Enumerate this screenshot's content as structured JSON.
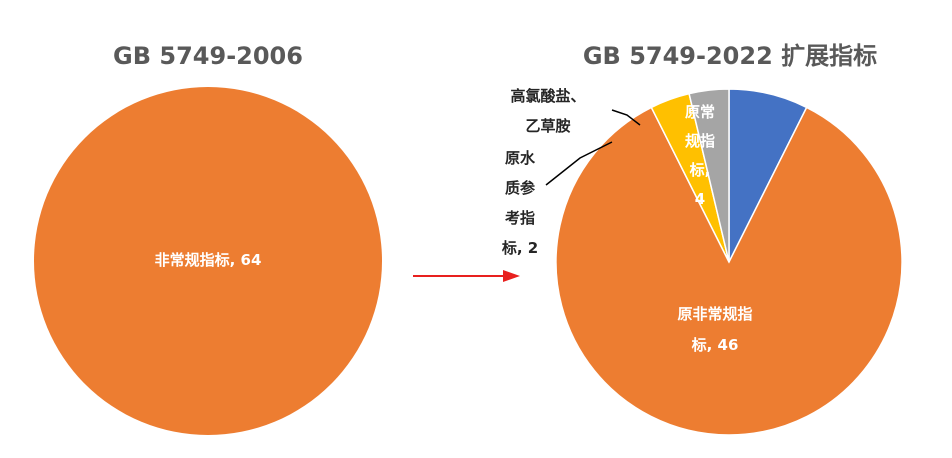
{
  "chart_data": [
    {
      "type": "pie",
      "title": "GB 5749-2006",
      "slices": [
        {
          "label": "非常规指标",
          "value": 64,
          "color": "#ED7D31",
          "data_label_lines": [
            "非常规指标, 64"
          ]
        }
      ]
    },
    {
      "type": "pie",
      "title": "GB 5749-2022 扩展指标",
      "slices": [
        {
          "label": "原常规指标",
          "value": 4,
          "color": "#4472C4",
          "data_label_lines": [
            "原常",
            "规指",
            "标,",
            "4"
          ]
        },
        {
          "label": "原非常规指标",
          "value": 46,
          "color": "#ED7D31",
          "data_label_lines": [
            "原非常规指",
            "标, 46"
          ]
        },
        {
          "label": "原水质参考指标",
          "value": 2,
          "color": "#FFC000",
          "data_label_lines": [
            "原水",
            "质参",
            "考指",
            "标, 2"
          ]
        },
        {
          "label": "高氯酸盐、乙草胺",
          "value": 2,
          "color": "#A5A5A5",
          "data_label_lines": [
            "高氯酸盐、",
            "乙草胺"
          ]
        }
      ]
    }
  ],
  "arrow": {
    "color": "#E8201E"
  },
  "leader_color": "#000000"
}
